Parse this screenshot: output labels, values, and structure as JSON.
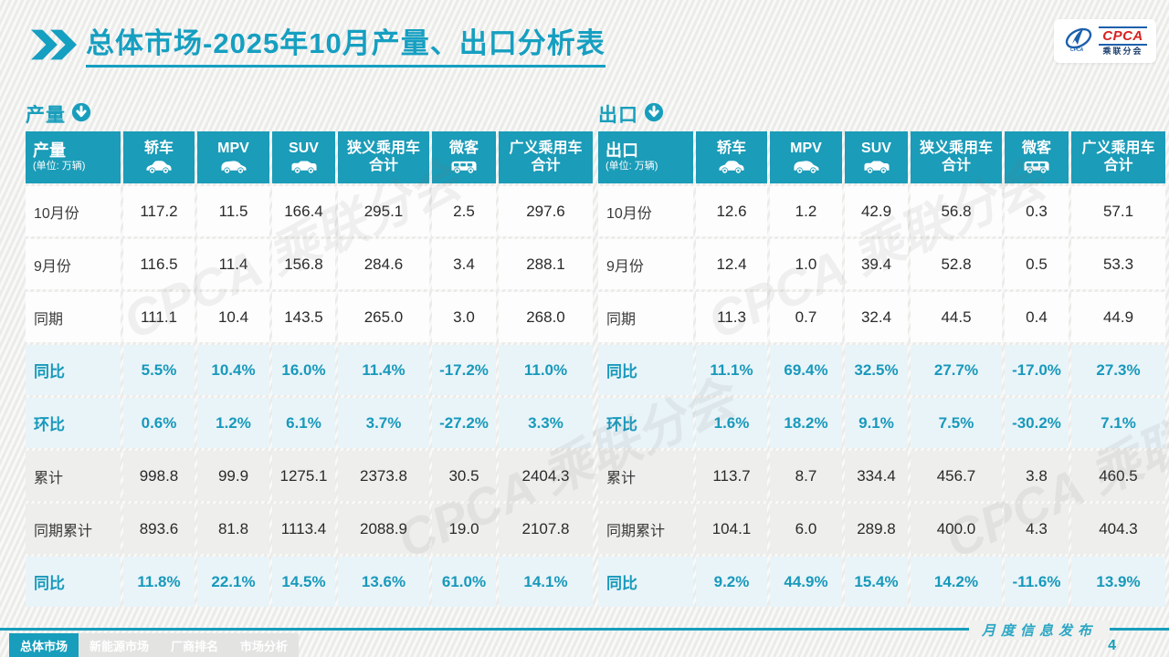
{
  "page": {
    "title_prefix": "总体市场",
    "title_rest": "-2025年10月产量、出口分析表",
    "footer_label": "月度信息发布",
    "page_number": "4",
    "watermark": "CPCA 乘联分会"
  },
  "colors": {
    "accent": "#189ebc",
    "header_bg": "#1b9cb8",
    "pct_row_bg": "#e9f4f9",
    "gray_row_bg": "#eeeeec",
    "logo_red": "#d6231f",
    "logo_blue": "#1c5fab"
  },
  "logo": {
    "name": "CPCA",
    "subtitle": "乘联分会"
  },
  "tabs": [
    {
      "label": "总体市场",
      "active": true
    },
    {
      "label": "新能源市场",
      "active": false
    },
    {
      "label": "厂商排名",
      "active": false
    },
    {
      "label": "市场分析",
      "active": false
    }
  ],
  "tables": [
    {
      "section_label": "产量",
      "corner_label": "产量",
      "unit": "(单位: 万辆)",
      "columns": [
        {
          "label": "轿车",
          "icon": "sedan-icon"
        },
        {
          "label": "MPV",
          "icon": "mpv-icon"
        },
        {
          "label": "SUV",
          "icon": "suv-icon"
        },
        {
          "label": "狭义乘用车\n合计"
        },
        {
          "label": "微客",
          "icon": "microvan-icon"
        },
        {
          "label": "广义乘用车\n合计"
        }
      ],
      "rows": [
        {
          "label": "10月份",
          "type": "plain",
          "values": [
            "117.2",
            "11.5",
            "166.4",
            "295.1",
            "2.5",
            "297.6"
          ]
        },
        {
          "label": "9月份",
          "type": "plain",
          "values": [
            "116.5",
            "11.4",
            "156.8",
            "284.6",
            "3.4",
            "288.1"
          ]
        },
        {
          "label": "同期",
          "type": "plain",
          "values": [
            "111.1",
            "10.4",
            "143.5",
            "265.0",
            "3.0",
            "268.0"
          ]
        },
        {
          "label": "同比",
          "type": "pct",
          "values": [
            "5.5%",
            "10.4%",
            "16.0%",
            "11.4%",
            "-17.2%",
            "11.0%"
          ]
        },
        {
          "label": "环比",
          "type": "pct",
          "values": [
            "0.6%",
            "1.2%",
            "6.1%",
            "3.7%",
            "-27.2%",
            "3.3%"
          ]
        },
        {
          "label": "累计",
          "type": "gray",
          "values": [
            "998.8",
            "99.9",
            "1275.1",
            "2373.8",
            "30.5",
            "2404.3"
          ]
        },
        {
          "label": "同期累计",
          "type": "gray",
          "values": [
            "893.6",
            "81.8",
            "1113.4",
            "2088.9",
            "19.0",
            "2107.8"
          ]
        },
        {
          "label": "同比",
          "type": "pct",
          "values": [
            "11.8%",
            "22.1%",
            "14.5%",
            "13.6%",
            "61.0%",
            "14.1%"
          ]
        }
      ]
    },
    {
      "section_label": "出口",
      "corner_label": "出口",
      "unit": "(单位: 万辆)",
      "columns": [
        {
          "label": "轿车",
          "icon": "sedan-icon"
        },
        {
          "label": "MPV",
          "icon": "mpv-icon"
        },
        {
          "label": "SUV",
          "icon": "suv-icon"
        },
        {
          "label": "狭义乘用车\n合计"
        },
        {
          "label": "微客",
          "icon": "microvan-icon"
        },
        {
          "label": "广义乘用车\n合计"
        }
      ],
      "rows": [
        {
          "label": "10月份",
          "type": "plain",
          "values": [
            "12.6",
            "1.2",
            "42.9",
            "56.8",
            "0.3",
            "57.1"
          ]
        },
        {
          "label": "9月份",
          "type": "plain",
          "values": [
            "12.4",
            "1.0",
            "39.4",
            "52.8",
            "0.5",
            "53.3"
          ]
        },
        {
          "label": "同期",
          "type": "plain",
          "values": [
            "11.3",
            "0.7",
            "32.4",
            "44.5",
            "0.4",
            "44.9"
          ]
        },
        {
          "label": "同比",
          "type": "pct",
          "values": [
            "11.1%",
            "69.4%",
            "32.5%",
            "27.7%",
            "-17.0%",
            "27.3%"
          ]
        },
        {
          "label": "环比",
          "type": "pct",
          "values": [
            "1.6%",
            "18.2%",
            "9.1%",
            "7.5%",
            "-30.2%",
            "7.1%"
          ]
        },
        {
          "label": "累计",
          "type": "gray",
          "values": [
            "113.7",
            "8.7",
            "334.4",
            "456.7",
            "3.8",
            "460.5"
          ]
        },
        {
          "label": "同期累计",
          "type": "gray",
          "values": [
            "104.1",
            "6.0",
            "289.8",
            "400.0",
            "4.3",
            "404.3"
          ]
        },
        {
          "label": "同比",
          "type": "pct",
          "values": [
            "9.2%",
            "44.9%",
            "15.4%",
            "14.2%",
            "-11.6%",
            "13.9%"
          ]
        }
      ]
    }
  ]
}
